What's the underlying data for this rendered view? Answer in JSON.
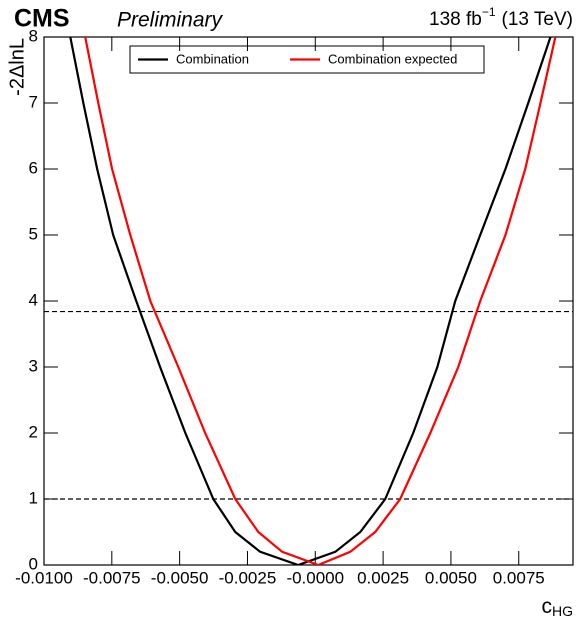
{
  "chart_data": {
    "type": "line",
    "experiment": "CMS",
    "status": "Preliminary",
    "lumi": "138 fb",
    "lumi_exp": "−1",
    "energy": "(13 TeV)",
    "x_label": "c",
    "x_label_sub": "HG",
    "y_label": "-2ΔlnL",
    "xlim": [
      -0.01,
      0.0095
    ],
    "ylim": [
      0,
      8
    ],
    "xticks": [
      {
        "value": -0.01,
        "label": "-0.0100"
      },
      -0.0075,
      {
        "value": -0.005,
        "label": "-0.0050"
      },
      -0.0025,
      {
        "value": 0,
        "label": "-0.0000"
      },
      0.0025,
      {
        "value": 0.005,
        "label": "0.0050"
      },
      0.0075
    ],
    "yticks": [
      0,
      1,
      2,
      3,
      4,
      5,
      6,
      7,
      8
    ],
    "hlines": [
      1,
      3.84
    ],
    "legend": "top",
    "series": [
      {
        "name": "Combination",
        "color": "#000000",
        "x": [
          -0.00903,
          -0.00855,
          -0.00804,
          -0.00745,
          -0.0066,
          -0.00572,
          -0.00479,
          -0.00376,
          -0.00295,
          -0.00203,
          -0.00063,
          0.00074,
          0.00166,
          0.00258,
          0.00361,
          0.0045,
          0.00516,
          0.00608,
          0.00701,
          0.00785,
          0.00867
        ],
        "values": [
          8,
          7,
          6,
          5,
          4,
          3,
          2,
          1,
          0.5,
          0.2,
          0,
          0.2,
          0.5,
          1,
          2,
          3,
          4,
          5,
          6,
          7,
          8
        ]
      },
      {
        "name": "Combination expected",
        "color": "#ff0000",
        "x": [
          -0.00848,
          -0.008,
          -0.00749,
          -0.00682,
          -0.00608,
          -0.00505,
          -0.00406,
          -0.00295,
          -0.0021,
          -0.00122,
          0.00011,
          0.00129,
          0.00221,
          0.00313,
          0.00424,
          0.00527,
          0.00608,
          0.00701,
          0.00774,
          0.0083,
          0.00885
        ],
        "values": [
          8,
          7,
          6,
          5,
          4,
          3,
          2,
          1,
          0.5,
          0.2,
          0,
          0.2,
          0.5,
          1,
          2,
          3,
          4,
          5,
          6,
          7,
          8
        ]
      }
    ]
  }
}
